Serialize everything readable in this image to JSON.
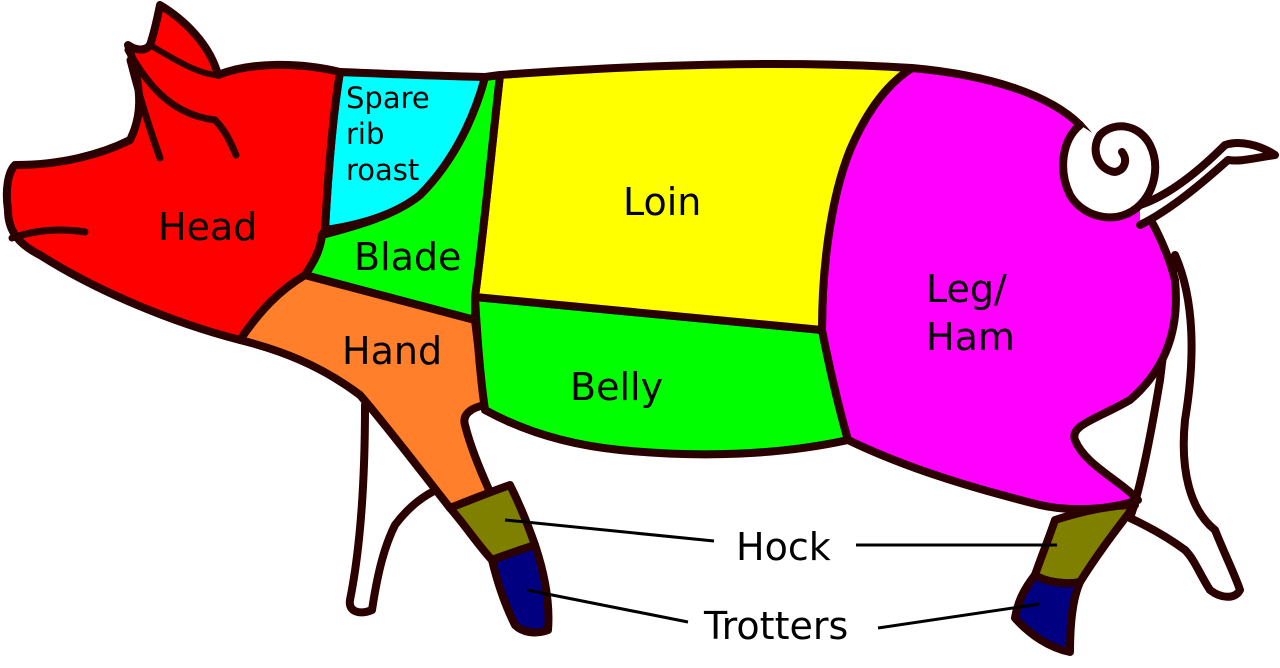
{
  "labels": {
    "head": "Head",
    "spare_rib_roast": [
      "Spare",
      "rib",
      "roast"
    ],
    "blade": "Blade",
    "loin": "Loin",
    "hand": "Hand",
    "belly": "Belly",
    "leg_ham": [
      "Leg/",
      "Ham"
    ],
    "hock": "Hock",
    "trotters": "Trotters"
  },
  "colors": {
    "outline": "#2b0000",
    "head": "#ff0000",
    "spare_rib_roast": "#00ffff",
    "blade": "#00ff00",
    "loin": "#ffff00",
    "hand": "#ff7f2a",
    "belly": "#00ff00",
    "leg_ham": "#ff00ff",
    "hock": "#808000",
    "trotters": "#000080",
    "background": "#ffffff",
    "unlabeled_legs": "#ffffff"
  }
}
